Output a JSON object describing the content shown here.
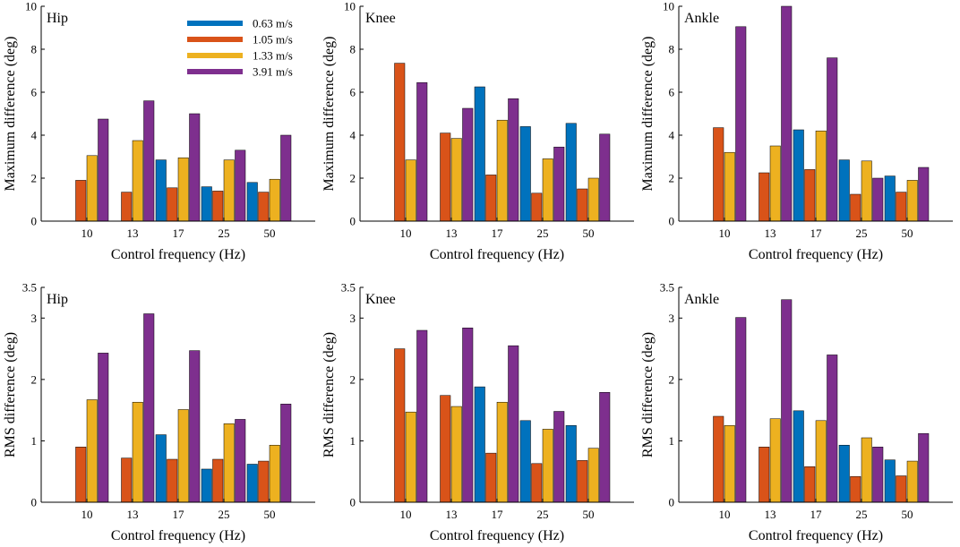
{
  "chart_data": [
    {
      "type": "bar",
      "title": "Hip",
      "categories": [
        "10",
        "13",
        "17",
        "25",
        "50"
      ],
      "xlabel": "Control frequency (Hz)",
      "ylabel": "Maximum difference (deg)",
      "ylim": [
        0,
        10
      ],
      "yticks": [
        "0",
        "2",
        "4",
        "6",
        "8",
        "10"
      ],
      "legend": "top-right",
      "series": [
        {
          "name": "0.63 m/s",
          "values": [
            0,
            0,
            2.85,
            1.6,
            1.8
          ]
        },
        {
          "name": "1.05 m/s",
          "values": [
            1.9,
            1.35,
            1.55,
            1.4,
            1.35
          ]
        },
        {
          "name": "1.33 m/s",
          "values": [
            3.05,
            3.75,
            2.95,
            2.85,
            1.95
          ]
        },
        {
          "name": "3.91 m/s",
          "values": [
            4.75,
            5.6,
            5.0,
            3.3,
            4.0
          ]
        }
      ]
    },
    {
      "type": "bar",
      "title": "Knee",
      "categories": [
        "10",
        "13",
        "17",
        "25",
        "50"
      ],
      "xlabel": "Control frequency (Hz)",
      "ylabel": "Maximum difference (deg)",
      "ylim": [
        0,
        10
      ],
      "yticks": [
        "0",
        "2",
        "4",
        "6",
        "8",
        "10"
      ],
      "series": [
        {
          "name": "0.63 m/s",
          "values": [
            0,
            0,
            6.25,
            4.4,
            4.55
          ]
        },
        {
          "name": "1.05 m/s",
          "values": [
            7.35,
            4.1,
            2.15,
            1.3,
            1.5
          ]
        },
        {
          "name": "1.33 m/s",
          "values": [
            2.85,
            3.85,
            4.7,
            2.9,
            2.0
          ]
        },
        {
          "name": "3.91 m/s",
          "values": [
            6.45,
            5.25,
            5.7,
            3.45,
            4.05
          ]
        }
      ]
    },
    {
      "type": "bar",
      "title": "Ankle",
      "categories": [
        "10",
        "13",
        "17",
        "25",
        "50"
      ],
      "xlabel": "Control frequency (Hz)",
      "ylabel": "Maximum difference (deg)",
      "ylim": [
        0,
        10
      ],
      "yticks": [
        "0",
        "2",
        "4",
        "6",
        "8",
        "10"
      ],
      "series": [
        {
          "name": "0.63 m/s",
          "values": [
            0,
            0,
            4.25,
            2.85,
            2.1
          ]
        },
        {
          "name": "1.05 m/s",
          "values": [
            4.35,
            2.25,
            2.4,
            1.25,
            1.35
          ]
        },
        {
          "name": "1.33 m/s",
          "values": [
            3.2,
            3.5,
            4.2,
            2.8,
            1.9
          ]
        },
        {
          "name": "3.91 m/s",
          "values": [
            9.05,
            10.0,
            7.6,
            2.0,
            2.5
          ]
        }
      ]
    },
    {
      "type": "bar",
      "title": "Hip",
      "categories": [
        "10",
        "13",
        "17",
        "25",
        "50"
      ],
      "xlabel": "Control frequency (Hz)",
      "ylabel": "RMS difference (deg)",
      "ylim": [
        0,
        3.5
      ],
      "yticks": [
        "0",
        "1",
        "2",
        "3",
        "3.5"
      ],
      "series": [
        {
          "name": "0.63 m/s",
          "values": [
            0,
            0,
            1.1,
            0.54,
            0.62
          ]
        },
        {
          "name": "1.05 m/s",
          "values": [
            0.9,
            0.72,
            0.7,
            0.7,
            0.67
          ]
        },
        {
          "name": "1.33 m/s",
          "values": [
            1.67,
            1.63,
            1.51,
            1.28,
            0.93
          ]
        },
        {
          "name": "3.91 m/s",
          "values": [
            2.43,
            3.07,
            2.47,
            1.35,
            1.6
          ]
        }
      ]
    },
    {
      "type": "bar",
      "title": "Knee",
      "categories": [
        "10",
        "13",
        "17",
        "25",
        "50"
      ],
      "xlabel": "Control frequency (Hz)",
      "ylabel": "RMS difference (deg)",
      "ylim": [
        0,
        3.5
      ],
      "yticks": [
        "0",
        "1",
        "2",
        "3",
        "3.5"
      ],
      "series": [
        {
          "name": "0.63 m/s",
          "values": [
            0,
            0,
            1.88,
            1.33,
            1.25
          ]
        },
        {
          "name": "1.05 m/s",
          "values": [
            2.5,
            1.74,
            0.8,
            0.63,
            0.68
          ]
        },
        {
          "name": "1.33 m/s",
          "values": [
            1.47,
            1.56,
            1.63,
            1.19,
            0.88
          ]
        },
        {
          "name": "3.91 m/s",
          "values": [
            2.8,
            2.84,
            2.55,
            1.48,
            1.79
          ]
        }
      ]
    },
    {
      "type": "bar",
      "title": "Ankle",
      "categories": [
        "10",
        "13",
        "17",
        "25",
        "50"
      ],
      "xlabel": "Control frequency (Hz)",
      "ylabel": "RMS difference (deg)",
      "ylim": [
        0,
        3.5
      ],
      "yticks": [
        "0",
        "1",
        "2",
        "3",
        "3.5"
      ],
      "series": [
        {
          "name": "0.63 m/s",
          "values": [
            0,
            0,
            1.49,
            0.93,
            0.69
          ]
        },
        {
          "name": "1.05 m/s",
          "values": [
            1.4,
            0.9,
            0.58,
            0.42,
            0.43
          ]
        },
        {
          "name": "1.33 m/s",
          "values": [
            1.25,
            1.36,
            1.33,
            1.05,
            0.67
          ]
        },
        {
          "name": "3.91 m/s",
          "values": [
            3.01,
            3.3,
            2.4,
            0.9,
            1.12
          ]
        }
      ]
    }
  ],
  "colors": [
    "#0072BD",
    "#D95319",
    "#EDB120",
    "#7E2F8E"
  ]
}
